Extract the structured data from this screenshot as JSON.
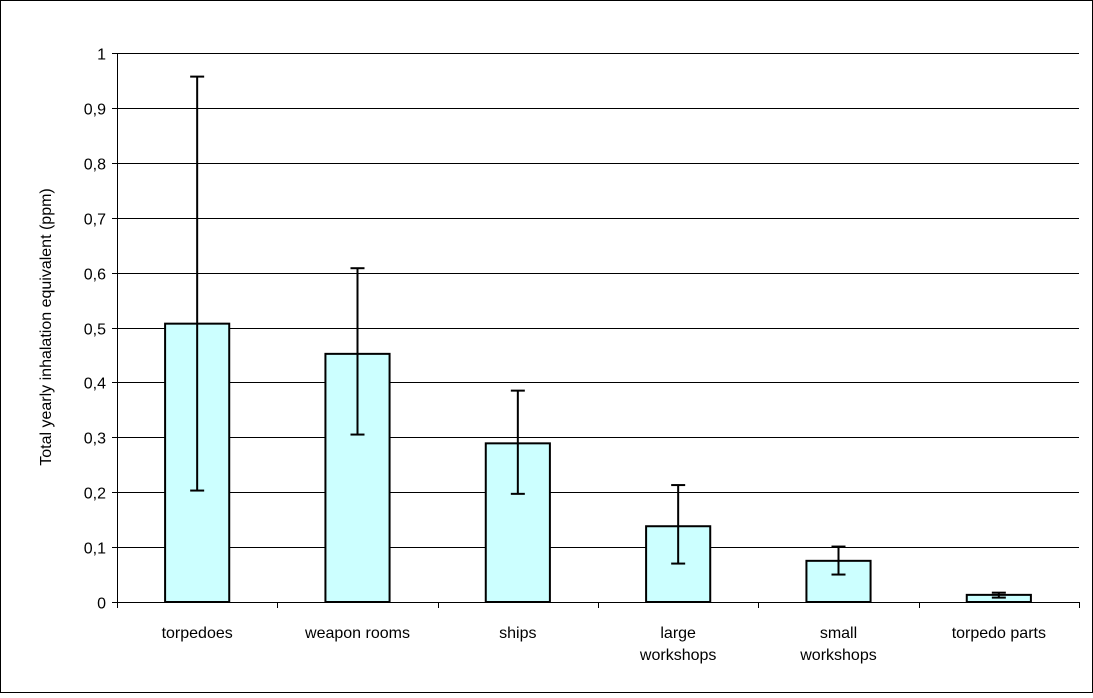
{
  "chart_data": {
    "type": "bar",
    "title": "",
    "xlabel": "",
    "ylabel": "Total yearly inhalation equivalent (ppm)",
    "categories": [
      [
        "torpedoes"
      ],
      [
        "weapon rooms"
      ],
      [
        "ships"
      ],
      [
        "large",
        "workshops"
      ],
      [
        "small",
        "workshops"
      ],
      [
        "torpedo parts"
      ]
    ],
    "values": [
      0.507,
      0.452,
      0.289,
      0.138,
      0.075,
      0.013
    ],
    "error_low": [
      0.203,
      0.305,
      0.197,
      0.07,
      0.05,
      0.008
    ],
    "error_high": [
      0.957,
      0.608,
      0.385,
      0.213,
      0.101,
      0.017
    ],
    "ylim": [
      0,
      1
    ],
    "yticks": [
      "0",
      "0,1",
      "0,2",
      "0,3",
      "0,4",
      "0,5",
      "0,6",
      "0,7",
      "0,8",
      "0,9",
      "1"
    ],
    "grid": true,
    "legend": "none",
    "colors": {
      "bar_fill": "#ccffff",
      "bar_stroke": "#000000",
      "grid": "#000000",
      "error_bar": "#000000"
    }
  }
}
